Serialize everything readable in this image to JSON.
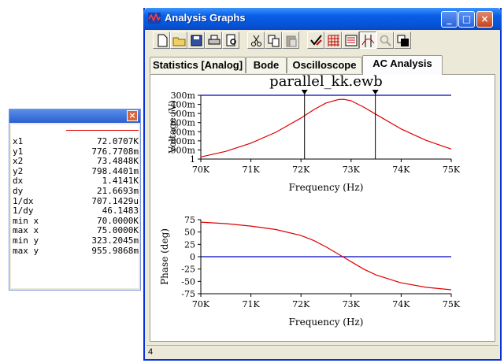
{
  "window": {
    "title": "Analysis Graphs",
    "status_text": "4"
  },
  "toolbar": {
    "buttons": [
      {
        "icon": "new-icon"
      },
      {
        "icon": "open-icon"
      },
      {
        "icon": "save-icon"
      },
      {
        "icon": "print-icon"
      },
      {
        "icon": "print-preview-icon"
      },
      {
        "icon": "cut-icon"
      },
      {
        "icon": "copy-icon"
      },
      {
        "icon": "paste-icon"
      },
      {
        "icon": "properties-icon"
      },
      {
        "icon": "toggle-grid-icon"
      },
      {
        "icon": "toggle-legend-icon"
      },
      {
        "icon": "toggle-cursors-icon"
      },
      {
        "icon": "zoom-icon"
      },
      {
        "icon": "reverse-colors-icon"
      }
    ]
  },
  "tabs": [
    "Statistics [Analog]",
    "Bode",
    "Oscilloscope",
    "AC Analysis"
  ],
  "active_tab": "AC Analysis",
  "readout": {
    "rows": [
      {
        "label": "x1",
        "value": "72.0707K"
      },
      {
        "label": "y1",
        "value": "776.7708m"
      },
      {
        "label": "x2",
        "value": "73.4848K"
      },
      {
        "label": "y2",
        "value": "798.4401m"
      },
      {
        "label": "dx",
        "value": "1.4141K"
      },
      {
        "label": "dy",
        "value": "21.6693m"
      },
      {
        "label": "1/dx",
        "value": "707.1429u"
      },
      {
        "label": "1/dy",
        "value": "46.1483"
      },
      {
        "label": "min x",
        "value": "70.0000K"
      },
      {
        "label": "max x",
        "value": "75.0000K"
      },
      {
        "label": "min y",
        "value": "323.2045m"
      },
      {
        "label": "max y",
        "value": "955.9868m"
      }
    ],
    "trace_color": "#e00000"
  },
  "chart_data": [
    {
      "type": "line",
      "title": "parallel_kk.ewb",
      "xlabel": "Frequency (Hz)",
      "ylabel": "Voltage (V)",
      "xlim": [
        70000,
        75000
      ],
      "ylim": [
        0.3,
        1.0
      ],
      "x_ticks": [
        "70K",
        "71K",
        "72K",
        "73K",
        "74K",
        "75K"
      ],
      "y_ticks": [
        "300m",
        "400m",
        "500m",
        "600m",
        "700m",
        "800m",
        "900m",
        "1"
      ],
      "series": [
        {
          "color": "#e00000",
          "x": [
            70000,
            70500,
            71000,
            71500,
            72000,
            72250,
            72500,
            72750,
            72850,
            73000,
            73250,
            73500,
            74000,
            74500,
            75000
          ],
          "y": [
            0.323,
            0.385,
            0.475,
            0.595,
            0.75,
            0.84,
            0.915,
            0.953,
            0.956,
            0.94,
            0.87,
            0.79,
            0.63,
            0.505,
            0.41
          ]
        }
      ],
      "cursors": [
        72070.7,
        73484.8
      ],
      "reference_line": 1.0,
      "reference_color": "#0000c0"
    },
    {
      "type": "line",
      "xlabel": "Frequency (Hz)",
      "ylabel": "Phase (deg)",
      "xlim": [
        70000,
        75000
      ],
      "ylim": [
        -75,
        75
      ],
      "x_ticks": [
        "70K",
        "71K",
        "72K",
        "73K",
        "74K",
        "75K"
      ],
      "y_ticks": [
        "75",
        "50",
        "25",
        "0",
        "-25",
        "-50",
        "-75"
      ],
      "series": [
        {
          "color": "#e00000",
          "x": [
            70000,
            70500,
            71000,
            71500,
            72000,
            72250,
            72500,
            72750,
            72850,
            73000,
            73250,
            73500,
            74000,
            74500,
            75000
          ],
          "y": [
            70,
            67,
            62,
            55,
            43,
            33,
            20,
            5,
            -1,
            -10,
            -25,
            -37,
            -53,
            -62,
            -67
          ]
        }
      ],
      "reference_line": 0,
      "reference_color": "#0000c0"
    }
  ]
}
